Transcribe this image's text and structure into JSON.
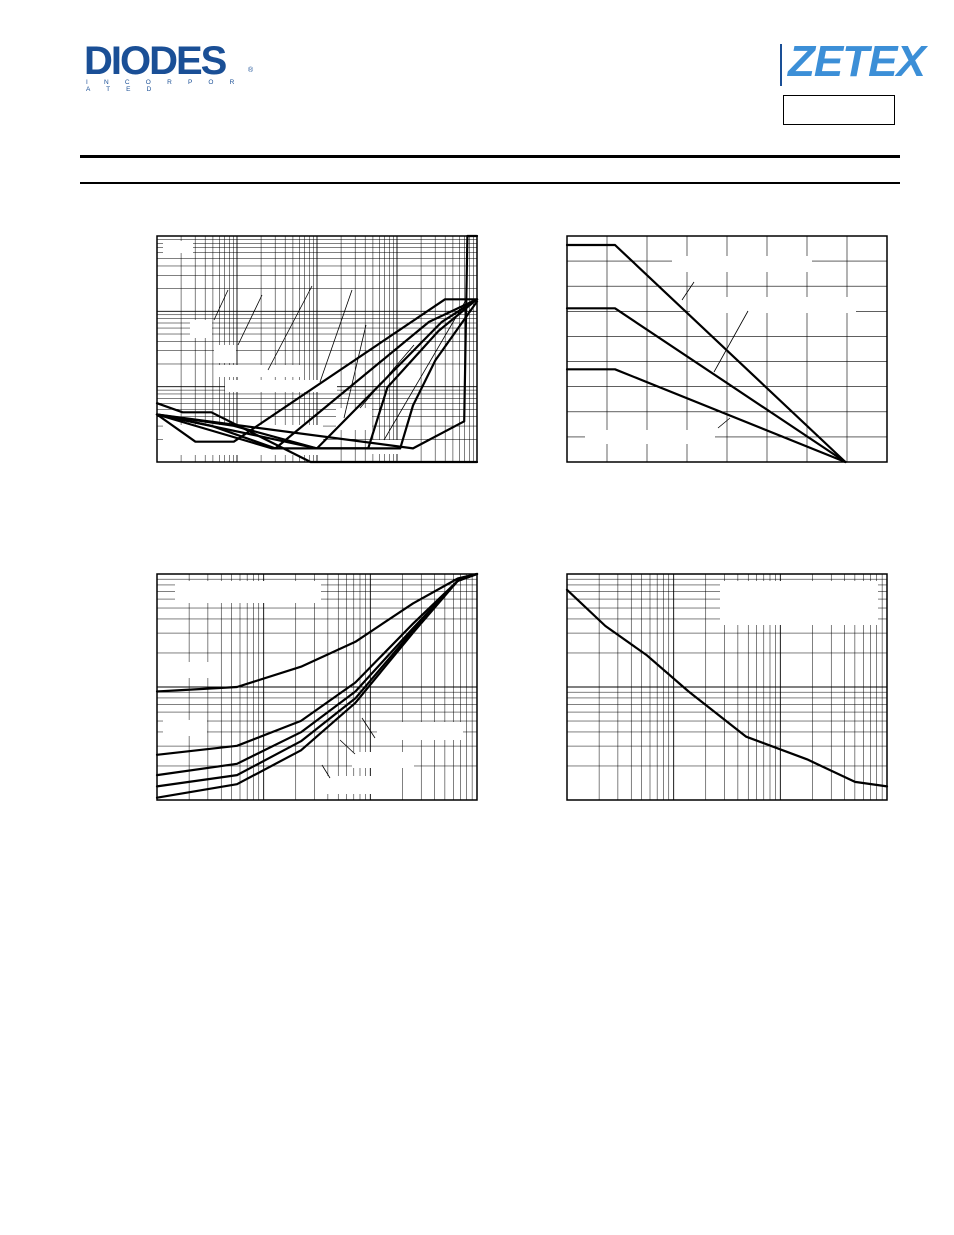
{
  "header": {
    "brand_left": "DIODES",
    "brand_left_sub": "I N C O R P O R A T E D",
    "brand_left_mark": "®",
    "brand_right": "ZETEX",
    "part_number": ""
  },
  "colors": {
    "diodes_blue": "#1a4f96",
    "zetex_blue": "#3c8fd7",
    "curve": "#000000"
  },
  "chart_data": [
    {
      "id": "chart1",
      "type": "line",
      "x_scale": "log",
      "y_scale": "log",
      "x_range": [
        0,
        1
      ],
      "y_range": [
        0,
        1
      ],
      "grid": "log-both",
      "series": [
        {
          "x": [
            0,
            0.08,
            0.17,
            0.48,
            1.0
          ],
          "y": [
            0.26,
            0.22,
            0.22,
            0.0,
            0.0
          ]
        },
        {
          "x": [
            0,
            0.12,
            0.24,
            0.9,
            1.0
          ],
          "y": [
            0.21,
            0.09,
            0.09,
            0.72,
            0.72
          ]
        },
        {
          "x": [
            0,
            0.17,
            0.37,
            0.85,
            1.0
          ],
          "y": [
            0.21,
            0.16,
            0.06,
            0.62,
            0.72
          ]
        },
        {
          "x": [
            0,
            0.24,
            0.5,
            0.89,
            1.0
          ],
          "y": [
            0.21,
            0.16,
            0.06,
            0.62,
            0.72
          ]
        },
        {
          "x": [
            0,
            0.36,
            0.66,
            0.72,
            0.88,
            1.0
          ],
          "y": [
            0.21,
            0.06,
            0.06,
            0.33,
            0.58,
            0.72
          ]
        },
        {
          "x": [
            0,
            0.5,
            0.76,
            0.8,
            0.87,
            1.0
          ],
          "y": [
            0.21,
            0.06,
            0.06,
            0.25,
            0.45,
            0.71
          ]
        },
        {
          "x": [
            0,
            0.8,
            0.96,
            0.97,
            1.0
          ],
          "y": [
            0.21,
            0.06,
            0.18,
            1.0,
            1.0
          ]
        }
      ]
    },
    {
      "id": "chart2",
      "type": "line",
      "x_scale": "linear",
      "y_scale": "linear",
      "x_range": [
        0,
        1
      ],
      "y_range": [
        0,
        1
      ],
      "grid": "linear-both",
      "series": [
        {
          "x": [
            0,
            0.15,
            0.87
          ],
          "y": [
            0.96,
            0.96,
            0.0
          ]
        },
        {
          "x": [
            0,
            0.15,
            0.87
          ],
          "y": [
            0.68,
            0.68,
            0.0
          ]
        },
        {
          "x": [
            0,
            0.15,
            0.87
          ],
          "y": [
            0.41,
            0.41,
            0.0
          ]
        }
      ]
    },
    {
      "id": "chart3",
      "type": "line",
      "x_scale": "log",
      "y_scale": "log",
      "x_range": [
        0,
        1
      ],
      "y_range": [
        0,
        1
      ],
      "grid": "log-both",
      "series": [
        {
          "x": [
            0,
            0.25,
            0.45,
            0.62,
            0.8,
            0.94,
            1.0
          ],
          "y": [
            0.48,
            0.5,
            0.59,
            0.7,
            0.87,
            0.98,
            1.0
          ]
        },
        {
          "x": [
            0,
            0.25,
            0.45,
            0.62,
            0.8,
            0.94,
            1.0
          ],
          "y": [
            0.2,
            0.24,
            0.35,
            0.52,
            0.78,
            0.97,
            1.0
          ]
        },
        {
          "x": [
            0,
            0.25,
            0.45,
            0.62,
            0.8,
            0.94,
            1.0
          ],
          "y": [
            0.11,
            0.16,
            0.3,
            0.48,
            0.76,
            0.97,
            1.0
          ]
        },
        {
          "x": [
            0,
            0.25,
            0.45,
            0.62,
            0.8,
            0.94,
            1.0
          ],
          "y": [
            0.06,
            0.11,
            0.26,
            0.45,
            0.75,
            0.97,
            1.0
          ]
        },
        {
          "x": [
            0,
            0.25,
            0.45,
            0.62,
            0.8,
            0.94,
            1.0
          ],
          "y": [
            0.01,
            0.07,
            0.22,
            0.43,
            0.74,
            0.97,
            1.0
          ]
        }
      ]
    },
    {
      "id": "chart4",
      "type": "line",
      "x_scale": "log",
      "y_scale": "log",
      "x_range": [
        0,
        1
      ],
      "y_range": [
        0,
        1
      ],
      "grid": "log-both",
      "series": [
        {
          "x": [
            0,
            0.12,
            0.25,
            0.38,
            0.56,
            0.75,
            0.9,
            1.0
          ],
          "y": [
            0.93,
            0.77,
            0.64,
            0.48,
            0.28,
            0.18,
            0.08,
            0.06
          ]
        }
      ]
    }
  ]
}
